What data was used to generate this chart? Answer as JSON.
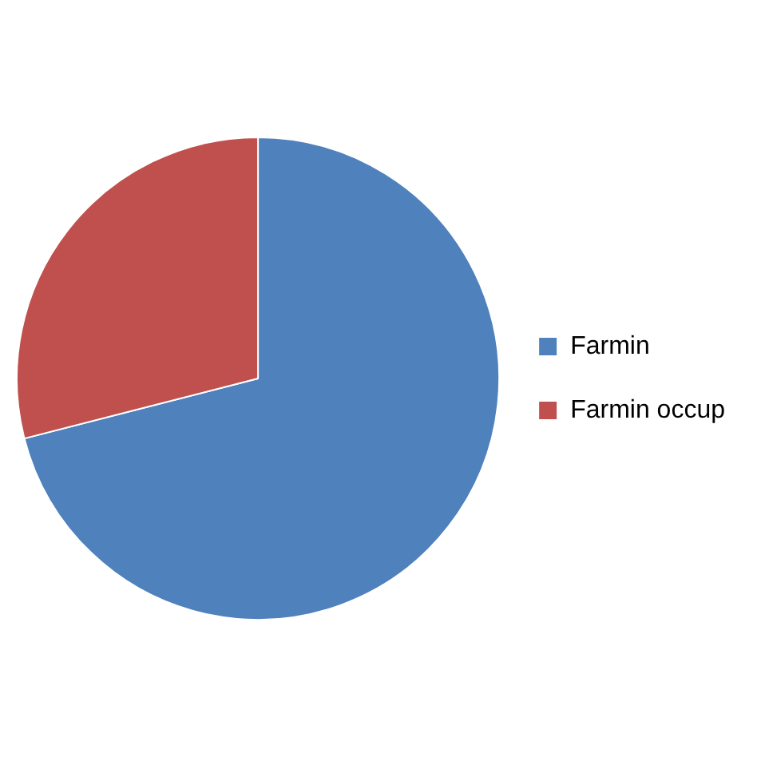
{
  "chart_data": {
    "type": "pie",
    "categories": [
      "Farmin",
      "Farmin occup"
    ],
    "values": [
      71,
      29
    ],
    "colors": [
      "#4f81bd",
      "#c0504d"
    ],
    "legend": "right"
  }
}
